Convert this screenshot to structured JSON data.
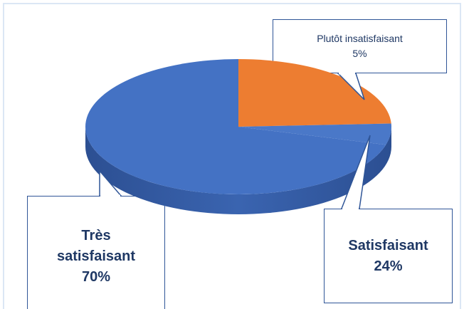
{
  "chart_data": {
    "type": "pie",
    "categories": [
      "Satisfaisant",
      "Plutôt insatisfaisant",
      "Très satisfaisant"
    ],
    "values": [
      24,
      5,
      70
    ],
    "value_labels": [
      "24%",
      "5%",
      "70%"
    ],
    "colors": [
      "#ed7d31",
      "#4a78c8",
      "#4472c4"
    ],
    "three_d": true
  }
}
